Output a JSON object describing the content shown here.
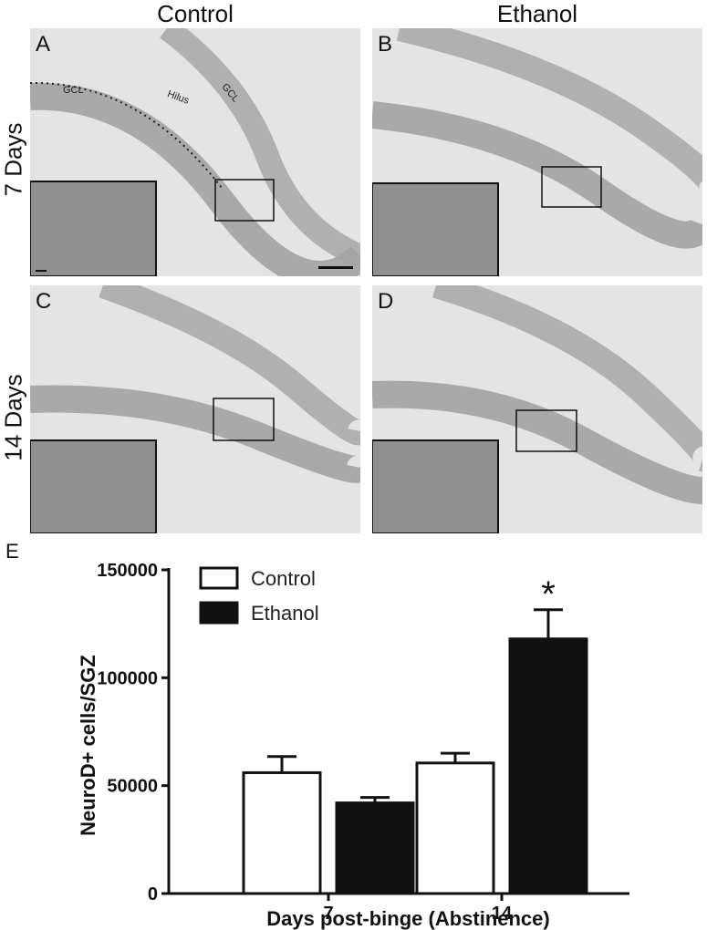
{
  "figure": {
    "columns": [
      "Control",
      "Ethanol"
    ],
    "rows": [
      "7 Days",
      "14 Days"
    ],
    "panels": [
      {
        "letter": "A",
        "labels": [
          "GCL",
          "Hilus",
          "GCL"
        ]
      },
      {
        "letter": "B",
        "labels": []
      },
      {
        "letter": "C",
        "labels": []
      },
      {
        "letter": "D",
        "labels": []
      }
    ],
    "chart_letter": "E"
  },
  "colors": {
    "control_fill": "#ffffff",
    "ethanol_fill": "#111111",
    "tissue": "#9a9a9a",
    "background": "#e4e4e4"
  },
  "chart_data": {
    "type": "bar",
    "categories": [
      "7",
      "14"
    ],
    "series": [
      {
        "name": "Control",
        "values": [
          56000,
          60500
        ],
        "errors": [
          7500,
          4500
        ]
      },
      {
        "name": "Ethanol",
        "values": [
          42000,
          118000
        ],
        "errors": [
          2500,
          13500
        ]
      }
    ],
    "xlabel": "Days post-binge (Abstinence)",
    "ylabel": "NeuroD+ cells/SGZ",
    "ylim": [
      0,
      150000
    ],
    "yticks": [
      "0",
      "50000",
      "100000",
      "150000"
    ],
    "legend_position": "top-left",
    "annotations": [
      {
        "text": "*",
        "category": "14",
        "series": "Ethanol"
      }
    ]
  }
}
